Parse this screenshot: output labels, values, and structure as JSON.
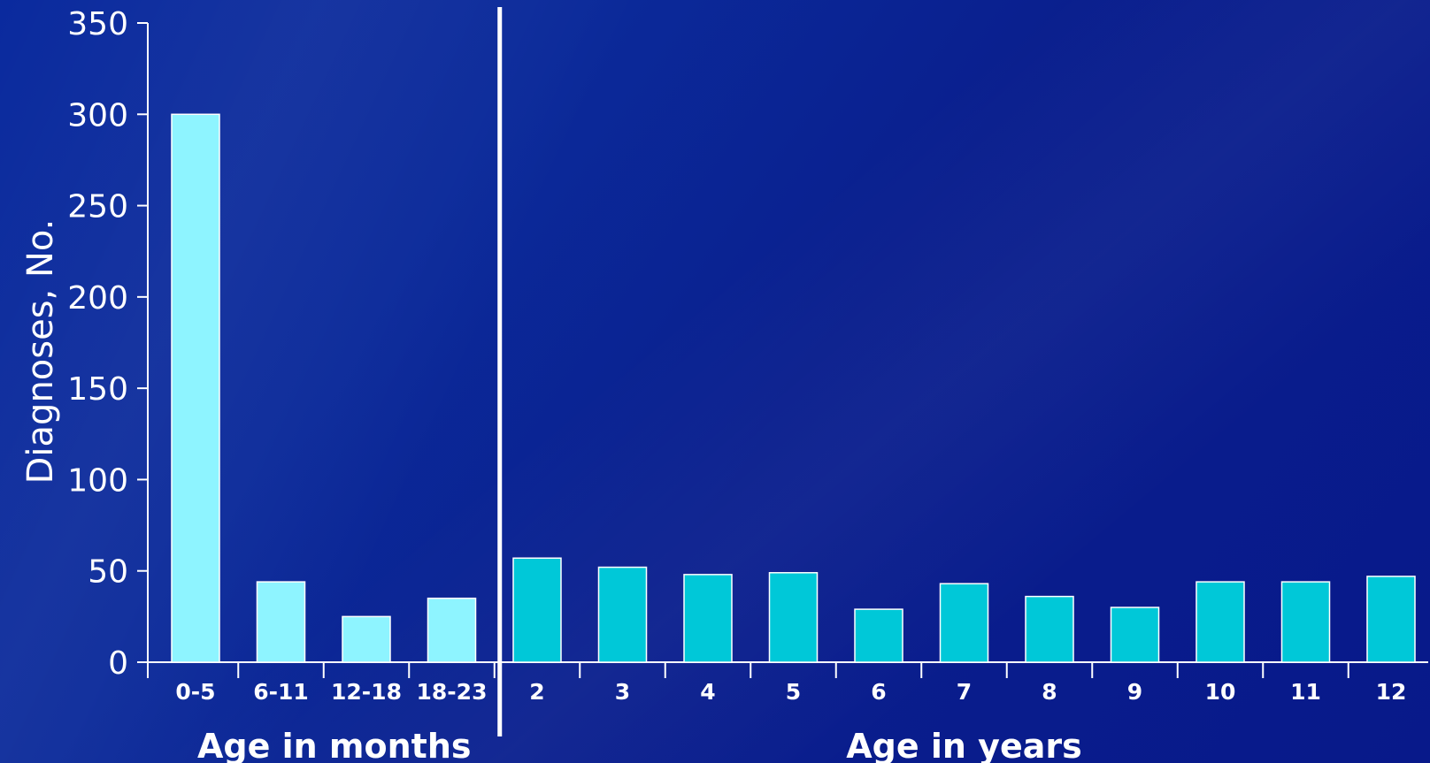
{
  "chart_data": {
    "type": "bar",
    "ylabel": "Diagnoses, No.",
    "ylim": [
      0,
      350
    ],
    "yticks": [
      0,
      50,
      100,
      150,
      200,
      250,
      300,
      350
    ],
    "grid": false,
    "groups": [
      {
        "label": "Age in months",
        "color": "#8ef4ff",
        "categories": [
          "0-5",
          "6-11",
          "12-18",
          "18-23"
        ],
        "values": [
          300,
          44,
          25,
          35
        ]
      },
      {
        "label": "Age in years",
        "color": "#00c8d8",
        "categories": [
          "2",
          "3",
          "4",
          "5",
          "6",
          "7",
          "8",
          "9",
          "10",
          "11",
          "12"
        ],
        "values": [
          57,
          52,
          48,
          49,
          29,
          43,
          36,
          30,
          44,
          44,
          47
        ]
      }
    ]
  }
}
